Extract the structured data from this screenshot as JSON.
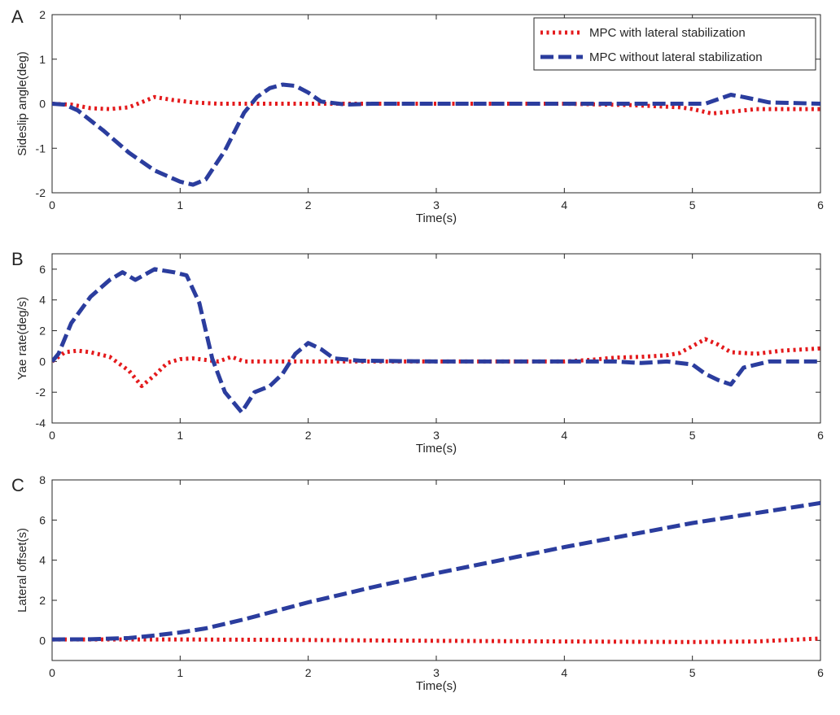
{
  "colors": {
    "with": "#e41a1c",
    "without": "#2b3d9e"
  },
  "chart_data": [
    {
      "type": "line",
      "panel": "A",
      "xlabel": "Time(s)",
      "ylabel": "Sideslip angle(deg)",
      "xlim": [
        0,
        6
      ],
      "ylim": [
        -2,
        2
      ],
      "xticks": [
        0,
        1,
        2,
        3,
        4,
        5,
        6
      ],
      "yticks": [
        -2,
        -1,
        0,
        1,
        2
      ],
      "grid": false,
      "legend": {
        "position": "top-right",
        "entries": [
          "MPC with lateral stabilization",
          "MPC without lateral stabilization"
        ]
      },
      "series": [
        {
          "name": "MPC with lateral stabilization",
          "style": "dotted",
          "x": [
            0,
            0.15,
            0.3,
            0.45,
            0.6,
            0.8,
            0.95,
            1.1,
            1.3,
            1.5,
            2,
            3,
            4,
            4.5,
            4.9,
            5.0,
            5.15,
            5.3,
            5.5,
            5.7,
            6
          ],
          "y": [
            0,
            -0.02,
            -0.1,
            -0.12,
            -0.08,
            0.15,
            0.08,
            0.03,
            0.0,
            0.0,
            0.0,
            0.0,
            0.0,
            -0.03,
            -0.08,
            -0.12,
            -0.22,
            -0.18,
            -0.12,
            -0.12,
            -0.12
          ]
        },
        {
          "name": "MPC without lateral stabilization",
          "style": "dashed",
          "x": [
            0,
            0.1,
            0.2,
            0.4,
            0.6,
            0.8,
            1.0,
            1.1,
            1.2,
            1.35,
            1.5,
            1.6,
            1.7,
            1.8,
            1.9,
            2.0,
            2.1,
            2.3,
            2.5,
            3,
            4,
            5,
            5.1,
            5.2,
            5.3,
            5.4,
            5.6,
            6
          ],
          "y": [
            0,
            -0.02,
            -0.15,
            -0.6,
            -1.1,
            -1.5,
            -1.75,
            -1.82,
            -1.7,
            -1.05,
            -0.2,
            0.15,
            0.35,
            0.43,
            0.4,
            0.25,
            0.05,
            -0.02,
            0.0,
            0.0,
            0.0,
            0.0,
            0.0,
            0.1,
            0.2,
            0.15,
            0.03,
            0.0
          ]
        }
      ]
    },
    {
      "type": "line",
      "panel": "B",
      "xlabel": "Time(s)",
      "ylabel": "Yae rate(deg/s)",
      "xlim": [
        0,
        6
      ],
      "ylim": [
        -4,
        7
      ],
      "xticks": [
        0,
        1,
        2,
        3,
        4,
        5,
        6
      ],
      "yticks": [
        -4,
        -2,
        0,
        2,
        4,
        6
      ],
      "grid": false,
      "series": [
        {
          "name": "MPC with lateral stabilization",
          "style": "dotted",
          "x": [
            0,
            0.1,
            0.2,
            0.3,
            0.45,
            0.6,
            0.7,
            0.8,
            0.9,
            1.0,
            1.1,
            1.2,
            1.3,
            1.4,
            1.5,
            1.7,
            2.0,
            3,
            4,
            4.2,
            4.4,
            4.6,
            4.8,
            4.9,
            5.0,
            5.1,
            5.2,
            5.3,
            5.5,
            5.7,
            6
          ],
          "y": [
            0,
            0.6,
            0.7,
            0.6,
            0.3,
            -0.6,
            -1.6,
            -0.9,
            -0.1,
            0.15,
            0.2,
            0.1,
            0.0,
            0.3,
            0.0,
            0.0,
            0.0,
            0.0,
            0.0,
            0.1,
            0.25,
            0.3,
            0.4,
            0.55,
            1.0,
            1.45,
            1.1,
            0.6,
            0.5,
            0.7,
            0.85
          ]
        },
        {
          "name": "MPC without lateral stabilization",
          "style": "dashed",
          "x": [
            0,
            0.05,
            0.15,
            0.3,
            0.45,
            0.55,
            0.65,
            0.8,
            0.95,
            1.05,
            1.15,
            1.25,
            1.35,
            1.48,
            1.58,
            1.7,
            1.8,
            1.9,
            2.0,
            2.1,
            2.2,
            2.4,
            3,
            4,
            4.2,
            4.4,
            4.6,
            4.8,
            5.0,
            5.1,
            5.2,
            5.3,
            5.4,
            5.6,
            6
          ],
          "y": [
            0,
            0.5,
            2.5,
            4.2,
            5.3,
            5.8,
            5.3,
            6.0,
            5.8,
            5.6,
            3.8,
            0.2,
            -2.0,
            -3.3,
            -2.0,
            -1.6,
            -0.8,
            0.5,
            1.2,
            0.8,
            0.2,
            0.05,
            0.0,
            0.0,
            0.0,
            0.0,
            -0.1,
            0.0,
            -0.2,
            -0.8,
            -1.2,
            -1.5,
            -0.4,
            0.0,
            0.0
          ]
        }
      ]
    },
    {
      "type": "line",
      "panel": "C",
      "xlabel": "Time(s)",
      "ylabel": "Lateral offset(s)",
      "xlim": [
        0,
        6
      ],
      "ylim": [
        -1,
        8
      ],
      "xticks": [
        0,
        1,
        2,
        3,
        4,
        5,
        6
      ],
      "yticks": [
        0,
        2,
        4,
        6,
        8
      ],
      "grid": false,
      "series": [
        {
          "name": "MPC with lateral stabilization",
          "style": "dotted",
          "x": [
            0,
            0.5,
            1,
            2,
            3,
            4,
            5,
            5.5,
            6
          ],
          "y": [
            0.05,
            0.05,
            0.05,
            0.02,
            -0.02,
            -0.05,
            -0.08,
            -0.05,
            0.1
          ]
        },
        {
          "name": "MPC without lateral stabilization",
          "style": "dashed",
          "x": [
            0,
            0.3,
            0.6,
            0.8,
            1.0,
            1.2,
            1.5,
            2,
            2.5,
            3,
            3.5,
            4,
            4.5,
            5,
            5.5,
            6
          ],
          "y": [
            0.05,
            0.06,
            0.12,
            0.25,
            0.4,
            0.6,
            1.05,
            1.9,
            2.65,
            3.35,
            4.0,
            4.65,
            5.25,
            5.85,
            6.35,
            6.85
          ]
        }
      ]
    }
  ]
}
